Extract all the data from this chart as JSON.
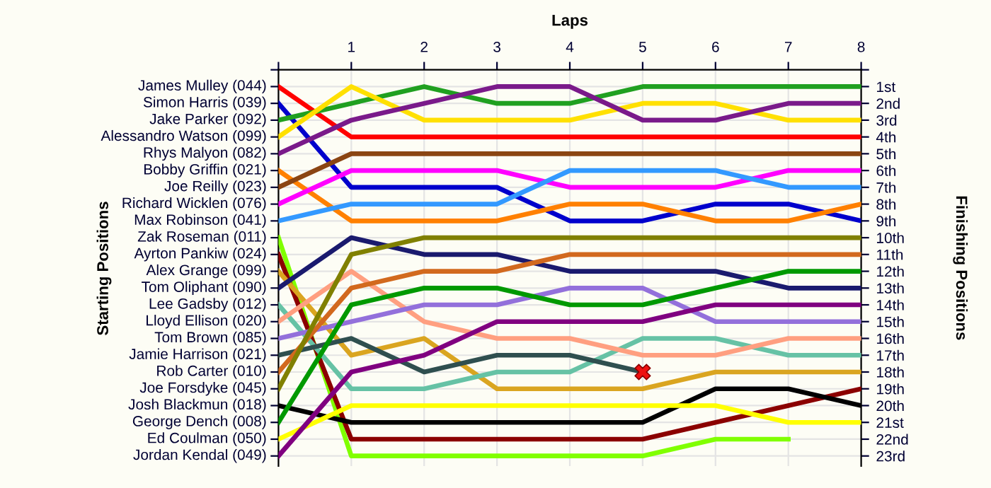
{
  "chart_data": {
    "type": "line",
    "xlabel": "Laps",
    "ylabel": "Finishing Positions",
    "x": [
      0,
      1,
      2,
      3,
      4,
      5,
      6,
      7,
      8
    ],
    "xlim": [
      0,
      8
    ],
    "xticks": [
      {
        "value": 0,
        "label": null
      },
      1,
      2,
      3,
      4,
      5,
      6,
      7,
      8
    ],
    "ylim": [
      23.6,
      0
    ],
    "yticks": [
      {
        "value": 0,
        "label": null
      },
      {
        "value": 1,
        "label": "1st"
      },
      {
        "value": 2,
        "label": "2nd"
      },
      {
        "value": 3,
        "label": "3rd"
      },
      {
        "value": 4,
        "label": "4th"
      },
      {
        "value": 5,
        "label": "5th"
      },
      {
        "value": 6,
        "label": "6th"
      },
      {
        "value": 7,
        "label": "7th"
      },
      {
        "value": 8,
        "label": "8th"
      },
      {
        "value": 9,
        "label": "9th"
      },
      {
        "value": 10,
        "label": "10th"
      },
      {
        "value": 11,
        "label": "11th"
      },
      {
        "value": 12,
        "label": "12th"
      },
      {
        "value": 13,
        "label": "13th"
      },
      {
        "value": 14,
        "label": "14th"
      },
      {
        "value": 15,
        "label": "15th"
      },
      {
        "value": 16,
        "label": "16th"
      },
      {
        "value": 17,
        "label": "17th"
      },
      {
        "value": 18,
        "label": "18th"
      },
      {
        "value": 19,
        "label": "19th"
      },
      {
        "value": 20,
        "label": "20th"
      },
      {
        "value": 21,
        "label": "21st"
      },
      {
        "value": 22,
        "label": "22nd"
      },
      {
        "value": 23,
        "label": "23rd"
      }
    ],
    "annotations": [
      "Starting Positions"
    ],
    "grid": true,
    "marker": "none",
    "line_style": "solid",
    "series": [
      {
        "name": "James Mulley (044)",
        "color": "#ff0000",
        "values": [
          1,
          4,
          4,
          4,
          4,
          4,
          4,
          4,
          4
        ]
      },
      {
        "name": "Simon Harris (039)",
        "color": "#0000cc",
        "values": [
          2,
          7,
          7,
          7,
          9,
          9,
          8,
          8,
          9
        ]
      },
      {
        "name": "Jake Parker (092)",
        "color": "#20a020",
        "values": [
          3,
          2,
          1,
          2,
          2,
          1,
          1,
          1,
          1
        ]
      },
      {
        "name": "Alessandro Watson (099)",
        "color": "#ffe000",
        "values": [
          4,
          1,
          3,
          3,
          3,
          2,
          2,
          3,
          3
        ]
      },
      {
        "name": "Rhys Malyon (082)",
        "color": "#7a1a8a",
        "values": [
          5,
          3,
          2,
          1,
          1,
          3,
          3,
          2,
          2
        ]
      },
      {
        "name": "Bobby Griffin (021)",
        "color": "#ff8000",
        "values": [
          6,
          9,
          9,
          9,
          8,
          8,
          9,
          9,
          8
        ]
      },
      {
        "name": "Joe Reilly (023)",
        "color": "#8b4513",
        "values": [
          7,
          5,
          5,
          5,
          5,
          5,
          5,
          5,
          5
        ]
      },
      {
        "name": "Richard Wicklen (076)",
        "color": "#ff00ff",
        "values": [
          8,
          6,
          6,
          6,
          7,
          7,
          7,
          6,
          6
        ]
      },
      {
        "name": "Max Robinson (041)",
        "color": "#3399ff",
        "values": [
          9,
          8,
          8,
          8,
          6,
          6,
          6,
          7,
          7
        ]
      },
      {
        "name": "Zak Roseman (011)",
        "color": "#80ff00",
        "values": [
          10,
          23,
          23,
          23,
          23,
          23,
          22,
          22,
          null
        ]
      },
      {
        "name": "Ayrton Pankiw (024)",
        "color": "#8b0000",
        "values": [
          11,
          22,
          22,
          22,
          22,
          22,
          21,
          20,
          19
        ]
      },
      {
        "name": "Alex Grange (099)",
        "color": "#daa520",
        "values": [
          12,
          17,
          16,
          19,
          19,
          19,
          18,
          18,
          18
        ]
      },
      {
        "name": "Tom Oliphant (090)",
        "color": "#1a1a6e",
        "values": [
          13,
          10,
          11,
          11,
          12,
          12,
          12,
          13,
          13
        ]
      },
      {
        "name": "Lee Gadsby (012)",
        "color": "#66c2a5",
        "values": [
          14,
          19,
          19,
          18,
          18,
          16,
          16,
          17,
          17
        ]
      },
      {
        "name": "Lloyd Ellison (020)",
        "color": "#ff9f80",
        "values": [
          15,
          12,
          15,
          16,
          16,
          17,
          17,
          16,
          16
        ]
      },
      {
        "name": "Tom Brown (085)",
        "color": "#9370db",
        "values": [
          16,
          15,
          14,
          14,
          13,
          13,
          15,
          15,
          15
        ]
      },
      {
        "name": "Jamie Harrison (021)",
        "color": "#2f4f4f",
        "values": [
          17,
          16,
          18,
          17,
          17,
          18,
          null,
          null,
          null
        ]
      },
      {
        "name": "Rob Carter (010)",
        "color": "#d2691e",
        "values": [
          18,
          13,
          12,
          12,
          11,
          11,
          11,
          11,
          11
        ]
      },
      {
        "name": "Joe Forsdyke (045)",
        "color": "#808000",
        "values": [
          19,
          11,
          10,
          10,
          10,
          10,
          10,
          10,
          10
        ]
      },
      {
        "name": "Josh Blackmun (018)",
        "color": "#000000",
        "values": [
          20,
          21,
          21,
          21,
          21,
          21,
          19,
          19,
          20
        ]
      },
      {
        "name": "George Dench (008)",
        "color": "#009900",
        "values": [
          21,
          14,
          13,
          13,
          14,
          14,
          13,
          12,
          12
        ]
      },
      {
        "name": "Ed Coulman (050)",
        "color": "#ffff00",
        "values": [
          22,
          20,
          20,
          20,
          20,
          20,
          20,
          21,
          21
        ]
      },
      {
        "name": "Jordan Kendal (049)",
        "color": "#800080",
        "values": [
          23,
          18,
          17,
          15,
          15,
          15,
          14,
          14,
          14
        ]
      },
      {
        "type": "scatter",
        "marker": "cross",
        "color": "#ee1111",
        "x": [
          5
        ],
        "values": [
          18
        ]
      }
    ]
  }
}
